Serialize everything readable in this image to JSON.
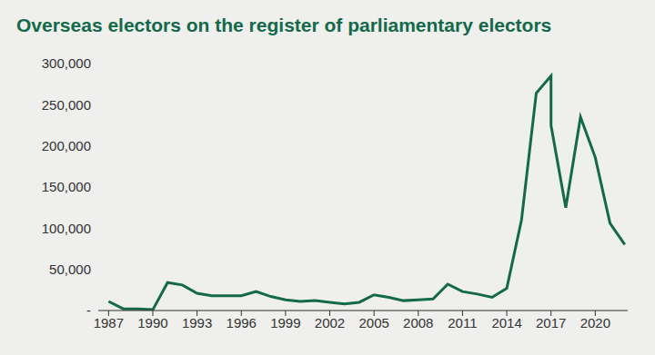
{
  "chart_data": {
    "type": "line",
    "title": "Overseas electors on the register of parliamentary electors",
    "x": [
      1987,
      1988,
      1989,
      1990,
      1991,
      1992,
      1993,
      1994,
      1995,
      1996,
      1997,
      1998,
      1999,
      2000,
      2001,
      2002,
      2003,
      2004,
      2005,
      2006,
      2007,
      2008,
      2009,
      2010,
      2011,
      2012,
      2013,
      2014,
      2015,
      2016,
      2017,
      2017,
      2018,
      2019,
      2020,
      2021,
      2022
    ],
    "values": [
      11000,
      2000,
      2000,
      1000,
      34000,
      31000,
      21000,
      18000,
      18000,
      18000,
      23000,
      17000,
      13000,
      11000,
      12000,
      10000,
      8000,
      10000,
      19000,
      16000,
      12000,
      13000,
      14000,
      32000,
      23000,
      20000,
      16000,
      27000,
      110000,
      264000,
      285000,
      225000,
      125000,
      235000,
      186000,
      106000,
      80000
    ],
    "color": "#14694a",
    "xlim": [
      1986.3,
      2022.2
    ],
    "xticks": [
      1987,
      1990,
      1993,
      1996,
      1999,
      2002,
      2005,
      2008,
      2011,
      2014,
      2017,
      2020
    ],
    "ylim": [
      0,
      300000
    ],
    "yticks": [
      {
        "value": 0,
        "label": "-"
      },
      {
        "value": 50000,
        "label": "50,000"
      },
      {
        "value": 100000,
        "label": "100,000"
      },
      {
        "value": 150000,
        "label": "150,000"
      },
      {
        "value": 200000,
        "label": "200,000"
      },
      {
        "value": 250000,
        "label": "250,000"
      },
      {
        "value": 300000,
        "label": "300,000"
      }
    ],
    "grid": false
  }
}
